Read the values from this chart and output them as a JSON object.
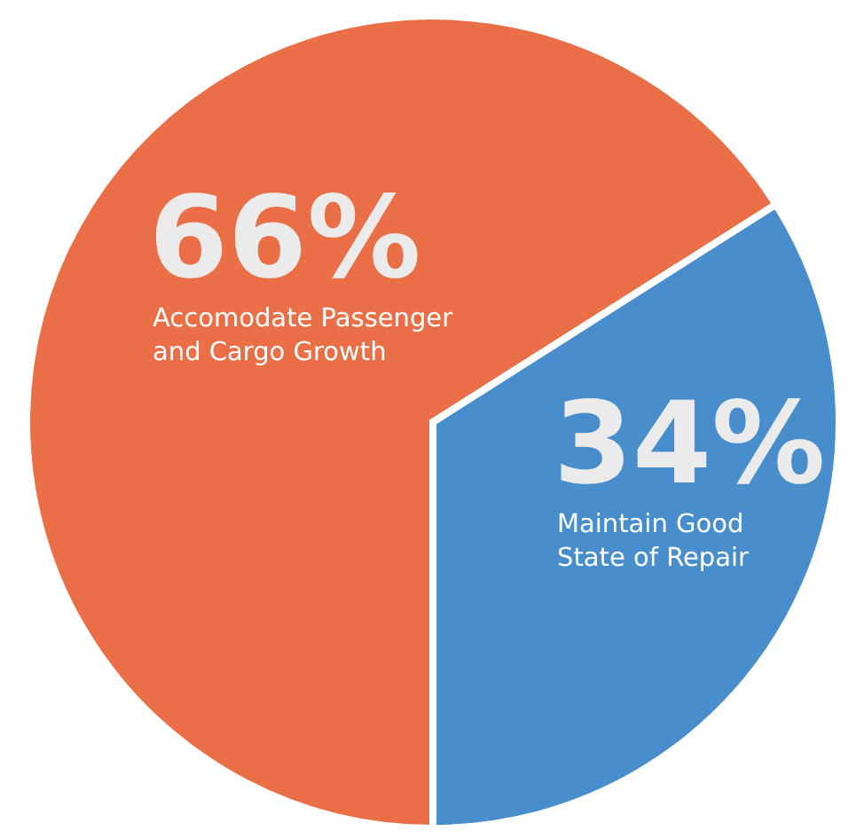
{
  "chart_data": {
    "type": "pie",
    "categories": [
      "Accomodate Passenger and Cargo Growth",
      "Maintain Good State of Repair"
    ],
    "values": [
      66,
      34
    ],
    "colors": [
      "#ea6e46",
      "#488dcc"
    ],
    "value_labels": [
      "66%",
      "34%"
    ]
  }
}
